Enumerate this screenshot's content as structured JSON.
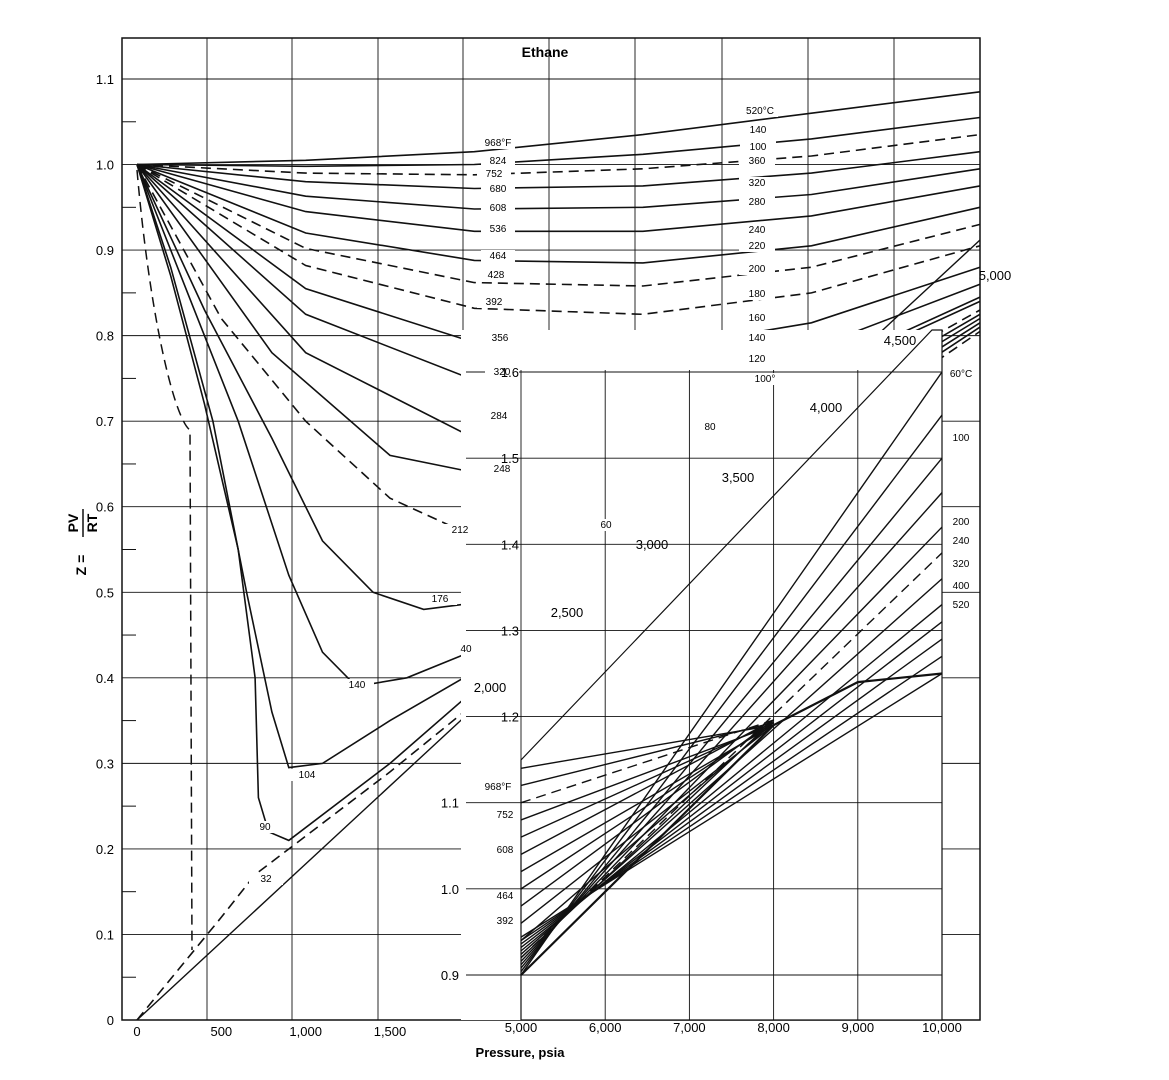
{
  "chart_data": {
    "type": "line",
    "title": "Ethane",
    "xlabel": "Pressure, psia",
    "ylabel_left": "Z =",
    "ylabel_num": "PV",
    "ylabel_den": "RT",
    "main": {
      "xlim": [
        0,
        5000
      ],
      "ylim": [
        0,
        1.15
      ],
      "y_ticks": [
        "0",
        "0.1",
        "0.2",
        "0.3",
        "0.4",
        "0.5",
        "0.6",
        "0.7",
        "0.8",
        "0.9",
        "1.0",
        "1.1"
      ],
      "y_tick_values": [
        0,
        0.1,
        0.2,
        0.3,
        0.4,
        0.5,
        0.6,
        0.7,
        0.8,
        0.9,
        1.0,
        1.1
      ],
      "x_ticks": [
        "0",
        "500",
        "1,000",
        "1,500"
      ],
      "x_tick_values": [
        0,
        500,
        1000,
        1500
      ],
      "diagonal_ticks": [
        {
          "label": "2,000",
          "value": 2000
        },
        {
          "label": "2,500",
          "value": 2500
        },
        {
          "label": "3,000",
          "value": 3000
        },
        {
          "label": "3,500",
          "value": 3500
        },
        {
          "label": "4,000",
          "value": 4000
        },
        {
          "label": "4,500",
          "value": 4500
        },
        {
          "label": "5,000",
          "value": 5000
        }
      ],
      "series": [
        {
          "name": "968°F",
          "dashed": false,
          "points": [
            [
              0,
              1.0
            ],
            [
              1000,
              1.005
            ],
            [
              2000,
              1.015
            ],
            [
              3000,
              1.035
            ],
            [
              4000,
              1.06
            ],
            [
              5000,
              1.085
            ]
          ]
        },
        {
          "name": "824",
          "dashed": false,
          "points": [
            [
              0,
              1.0
            ],
            [
              1000,
              0.998
            ],
            [
              2000,
              1.0
            ],
            [
              3000,
              1.012
            ],
            [
              4000,
              1.03
            ],
            [
              5000,
              1.055
            ]
          ]
        },
        {
          "name": "752",
          "dashed": true,
          "points": [
            [
              0,
              1.0
            ],
            [
              1000,
              0.99
            ],
            [
              2000,
              0.988
            ],
            [
              3000,
              0.995
            ],
            [
              4000,
              1.01
            ],
            [
              5000,
              1.035
            ]
          ]
        },
        {
          "name": "680",
          "dashed": false,
          "points": [
            [
              0,
              1.0
            ],
            [
              1000,
              0.98
            ],
            [
              2000,
              0.972
            ],
            [
              3000,
              0.975
            ],
            [
              4000,
              0.99
            ],
            [
              5000,
              1.015
            ]
          ]
        },
        {
          "name": "608",
          "dashed": false,
          "points": [
            [
              0,
              1.0
            ],
            [
              1000,
              0.963
            ],
            [
              2000,
              0.948
            ],
            [
              3000,
              0.95
            ],
            [
              4000,
              0.965
            ],
            [
              5000,
              0.995
            ]
          ]
        },
        {
          "name": "536",
          "dashed": false,
          "points": [
            [
              0,
              1.0
            ],
            [
              1000,
              0.945
            ],
            [
              2000,
              0.922
            ],
            [
              3000,
              0.922
            ],
            [
              4000,
              0.94
            ],
            [
              5000,
              0.975
            ]
          ]
        },
        {
          "name": "464",
          "dashed": false,
          "points": [
            [
              0,
              1.0
            ],
            [
              1000,
              0.92
            ],
            [
              2000,
              0.888
            ],
            [
              3000,
              0.885
            ],
            [
              4000,
              0.905
            ],
            [
              5000,
              0.95
            ]
          ]
        },
        {
          "name": "428",
          "dashed": true,
          "points": [
            [
              0,
              1.0
            ],
            [
              1000,
              0.902
            ],
            [
              2000,
              0.862
            ],
            [
              3000,
              0.858
            ],
            [
              4000,
              0.88
            ],
            [
              5000,
              0.93
            ]
          ]
        },
        {
          "name": "392",
          "dashed": true,
          "points": [
            [
              0,
              1.0
            ],
            [
              1000,
              0.882
            ],
            [
              2000,
              0.832
            ],
            [
              3000,
              0.825
            ],
            [
              4000,
              0.85
            ],
            [
              5000,
              0.905
            ]
          ]
        },
        {
          "name": "356",
          "dashed": false,
          "points": [
            [
              0,
              1.0
            ],
            [
              1000,
              0.855
            ],
            [
              2000,
              0.792
            ],
            [
              2500,
              0.78
            ],
            [
              3000,
              0.782
            ],
            [
              4000,
              0.815
            ],
            [
              5000,
              0.88
            ]
          ]
        },
        {
          "name": "320",
          "dashed": false,
          "points": [
            [
              0,
              1.0
            ],
            [
              1000,
              0.825
            ],
            [
              2000,
              0.748
            ],
            [
              2500,
              0.735
            ],
            [
              3000,
              0.74
            ],
            [
              4000,
              0.785
            ],
            [
              5000,
              0.86
            ]
          ]
        },
        {
          "name": "284",
          "dashed": false,
          "points": [
            [
              0,
              1.0
            ],
            [
              1000,
              0.78
            ],
            [
              2000,
              0.68
            ],
            [
              2500,
              0.67
            ],
            [
              3000,
              0.685
            ],
            [
              4000,
              0.755
            ],
            [
              5000,
              0.845
            ]
          ]
        },
        {
          "name": "248",
          "dashed": false,
          "points": [
            [
              0,
              1.0
            ],
            [
              800,
              0.78
            ],
            [
              1500,
              0.66
            ],
            [
              2000,
              0.64
            ],
            [
              2500,
              0.64
            ],
            [
              3000,
              0.67
            ],
            [
              4000,
              0.75
            ],
            [
              5000,
              0.84
            ]
          ]
        },
        {
          "name": "212",
          "dashed": true,
          "points": [
            [
              0,
              1.0
            ],
            [
              500,
              0.82
            ],
            [
              1000,
              0.7
            ],
            [
              1500,
              0.61
            ],
            [
              2000,
              0.565
            ],
            [
              2500,
              0.57
            ],
            [
              3000,
              0.615
            ],
            [
              4000,
              0.72
            ],
            [
              5000,
              0.83
            ]
          ]
        },
        {
          "name": "176",
          "dashed": false,
          "points": [
            [
              0,
              1.0
            ],
            [
              400,
              0.83
            ],
            [
              800,
              0.68
            ],
            [
              1100,
              0.56
            ],
            [
              1400,
              0.5
            ],
            [
              1700,
              0.48
            ],
            [
              2100,
              0.49
            ],
            [
              3000,
              0.59
            ],
            [
              4000,
              0.71
            ],
            [
              5000,
              0.825
            ]
          ]
        },
        {
          "name": "140",
          "dashed": false,
          "points": [
            [
              0,
              1.0
            ],
            [
              300,
              0.85
            ],
            [
              600,
              0.7
            ],
            [
              900,
              0.52
            ],
            [
              1100,
              0.43
            ],
            [
              1300,
              0.39
            ],
            [
              1600,
              0.4
            ],
            [
              2100,
              0.44
            ],
            [
              3000,
              0.57
            ],
            [
              4000,
              0.7
            ],
            [
              5000,
              0.82
            ]
          ]
        },
        {
          "name": "104",
          "dashed": false,
          "points": [
            [
              0,
              1.0
            ],
            [
              200,
              0.88
            ],
            [
              450,
              0.7
            ],
            [
              650,
              0.5
            ],
            [
              800,
              0.36
            ],
            [
              900,
              0.295
            ],
            [
              1100,
              0.3
            ],
            [
              1500,
              0.35
            ],
            [
              2200,
              0.43
            ],
            [
              3000,
              0.55
            ],
            [
              4000,
              0.69
            ],
            [
              5000,
              0.815
            ]
          ]
        },
        {
          "name": "90",
          "dashed": false,
          "points": [
            [
              0,
              1.0
            ],
            [
              200,
              0.87
            ],
            [
              400,
              0.72
            ],
            [
              600,
              0.55
            ],
            [
              700,
              0.4
            ],
            [
              720,
              0.26
            ],
            [
              780,
              0.22
            ],
            [
              900,
              0.21
            ],
            [
              1500,
              0.3
            ],
            [
              2200,
              0.42
            ],
            [
              3000,
              0.54
            ],
            [
              4000,
              0.68
            ],
            [
              5000,
              0.81
            ]
          ]
        },
        {
          "name": "32",
          "dashed": true,
          "points": [
            [
              0,
              0.0
            ],
            [
              500,
              0.12
            ],
            [
              700,
              0.17
            ],
            [
              1000,
              0.215
            ],
            [
              1500,
              0.29
            ],
            [
              2000,
              0.37
            ],
            [
              3000,
              0.53
            ],
            [
              4000,
              0.67
            ],
            [
              5000,
              0.805
            ]
          ]
        }
      ]
    },
    "inset": {
      "xlim": [
        5000,
        10000
      ],
      "ylim": [
        0.9,
        1.6
      ],
      "x_ticks": [
        "5,000",
        "6,000",
        "7,000",
        "8,000",
        "9,000",
        "10,000"
      ],
      "x_tick_values": [
        5000,
        6000,
        7000,
        8000,
        9000,
        10000
      ],
      "y_ticks": [
        "0.9",
        "1.0",
        "1.1",
        "1.2",
        "1.3",
        "1.4",
        "1.5",
        "1.6"
      ],
      "y_tick_values": [
        0.9,
        1.0,
        1.1,
        1.2,
        1.3,
        1.4,
        1.5,
        1.6
      ],
      "left_labels": [
        "968°F",
        "752",
        "608",
        "464",
        "392"
      ],
      "right_labels": [
        "60°C",
        "100",
        "200",
        "240",
        "320",
        "400",
        "520"
      ]
    },
    "right_curve_labels": [
      "520°C",
      "140",
      "100",
      "360",
      "320",
      "280",
      "240",
      "220",
      "200",
      "180",
      "160",
      "140",
      "120",
      "100°",
      "80",
      "60",
      "40"
    ]
  }
}
